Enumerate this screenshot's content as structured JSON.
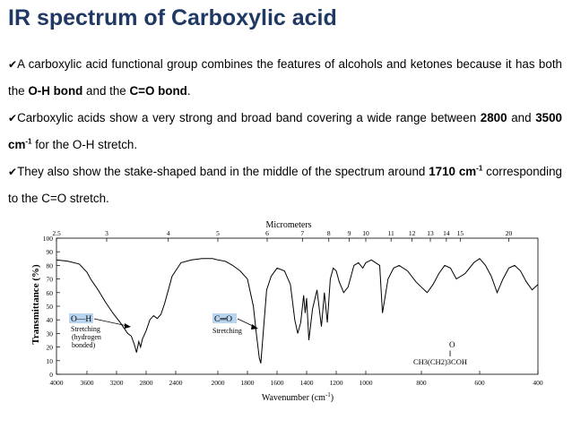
{
  "slide": {
    "title": "IR spectrum of Carboxylic acid"
  },
  "bullets": [
    {
      "icon": "checkmark-icon",
      "parts": [
        {
          "t": "A carboxylic acid functional group combines the features of alcohols and ketones because it has both the ",
          "b": false
        },
        {
          "t": "O-H bond",
          "b": true
        },
        {
          "t": " and the ",
          "b": false
        },
        {
          "t": "C=O bond",
          "b": true
        },
        {
          "t": ".",
          "b": false
        }
      ]
    },
    {
      "icon": "checkmark-icon",
      "parts": [
        {
          "t": "Carboxylic acids show a very strong and broad band covering a wide range between ",
          "b": false
        },
        {
          "t": "2800",
          "b": true
        },
        {
          "t": " and ",
          "b": false
        },
        {
          "t": "3500 cm",
          "b": true
        },
        {
          "t": "-1",
          "b": true,
          "sup": true
        },
        {
          "t": " for the O-H stretch.",
          "b": false
        }
      ]
    },
    {
      "icon": "checkmark-icon",
      "parts": [
        {
          "t": "They also show the stake-shaped band in the middle of the spectrum around ",
          "b": false
        },
        {
          "t": "1710 cm",
          "b": true
        },
        {
          "t": "-1",
          "b": true,
          "sup": true
        },
        {
          "t": " corresponding to the C=O stretch.",
          "b": false
        }
      ]
    }
  ],
  "spectrum": {
    "top_axis_title": "Micrometers",
    "top_ticks": [
      "2.5",
      "3",
      "4",
      "5",
      "6",
      "7",
      "8",
      "9",
      "10",
      "11",
      "12",
      "13",
      "14",
      "15",
      "20"
    ],
    "y_axis_title": "Transmittance (%)",
    "y_ticks": [
      "100",
      "90",
      "80",
      "70",
      "60",
      "50",
      "40",
      "30",
      "20",
      "10",
      "0"
    ],
    "x_axis_title": "Wavenumber (cm",
    "x_axis_title_sup": "-1",
    "x_axis_title_end": ")",
    "x_ticks": [
      "4000",
      "3600",
      "3200",
      "2800",
      "2400",
      "2000",
      "1800",
      "1600",
      "1400",
      "1200",
      "1000",
      "800",
      "600",
      "400"
    ],
    "annotation_oh": {
      "label": "O—H",
      "lines": [
        "Stretching",
        "(hydrogen",
        "bonded)"
      ]
    },
    "annotation_co": {
      "label": "C═O",
      "lines": [
        "Stretching"
      ]
    },
    "structure": {
      "o": "O",
      "bond": "‖",
      "formula": "CH3(CH2)3COH"
    },
    "colors": {
      "label_highlight": "#b8d4ee",
      "curve": "#000000"
    }
  },
  "chart_data": {
    "type": "line",
    "title": "",
    "xlabel": "Wavenumber (cm-1)",
    "ylabel": "Transmittance (%)",
    "secondary_xlabel": "Micrometers",
    "xlim": [
      4000,
      400
    ],
    "ylim": [
      0,
      100
    ],
    "grid": false,
    "x": [
      4000,
      3850,
      3700,
      3600,
      3550,
      3450,
      3350,
      3250,
      3150,
      3050,
      3000,
      2960,
      2930,
      2900,
      2875,
      2850,
      2800,
      2750,
      2700,
      2650,
      2600,
      2550,
      2500,
      2450,
      2350,
      2250,
      2150,
      2050,
      2000,
      1950,
      1900,
      1850,
      1800,
      1760,
      1740,
      1720,
      1710,
      1695,
      1670,
      1640,
      1600,
      1550,
      1510,
      1480,
      1460,
      1440,
      1420,
      1410,
      1400,
      1385,
      1360,
      1330,
      1300,
      1280,
      1260,
      1240,
      1220,
      1200,
      1180,
      1150,
      1120,
      1100,
      1080,
      1050,
      1020,
      1000,
      980,
      950,
      940,
      920,
      900,
      880,
      850,
      820,
      800,
      780,
      760,
      740,
      720,
      700,
      680,
      650,
      620,
      600,
      580,
      560,
      540,
      520,
      500,
      480,
      460,
      440,
      420,
      400
    ],
    "y": [
      84,
      83,
      81,
      75,
      70,
      62,
      53,
      45,
      38,
      30,
      28,
      22,
      16,
      24,
      20,
      26,
      32,
      40,
      43,
      41,
      44,
      52,
      62,
      72,
      82,
      84,
      85,
      85,
      84,
      83,
      80,
      76,
      70,
      50,
      30,
      12,
      8,
      28,
      62,
      72,
      78,
      76,
      66,
      40,
      30,
      38,
      58,
      45,
      56,
      25,
      48,
      62,
      35,
      60,
      38,
      70,
      78,
      76,
      68,
      60,
      64,
      72,
      80,
      82,
      78,
      82,
      84,
      80,
      45,
      70,
      78,
      80,
      76,
      68,
      64,
      60,
      66,
      74,
      80,
      78,
      70,
      74,
      82,
      85,
      80,
      72,
      60,
      70,
      78,
      80,
      76,
      68,
      62,
      66
    ]
  }
}
